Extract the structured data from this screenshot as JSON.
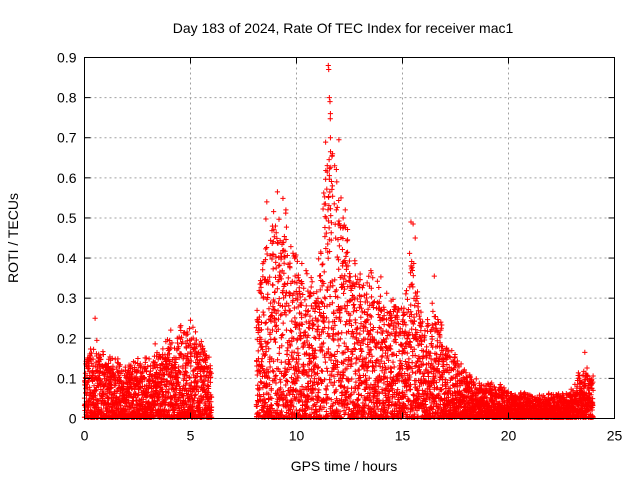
{
  "chart_data": {
    "type": "scatter",
    "title": "Day 183 of 2024, Rate Of TEC Index for receiver mac1",
    "xlabel": "GPS time / hours",
    "ylabel": "ROTI / TECUs",
    "xlim": [
      0,
      25
    ],
    "ylim": [
      0,
      0.9
    ],
    "xticks": [
      0,
      5,
      10,
      15,
      20,
      25
    ],
    "yticks": [
      0,
      0.1,
      0.2,
      0.3,
      0.4,
      0.5,
      0.6,
      0.7,
      0.8,
      0.9
    ],
    "grid": true,
    "marker": "+",
    "color": "#ff0000",
    "data_gap_hours": [
      6.0,
      8.1
    ],
    "envelope": [
      {
        "x": 0.0,
        "y": 0.14
      },
      {
        "x": 0.5,
        "y": 0.18
      },
      {
        "x": 1.0,
        "y": 0.15
      },
      {
        "x": 1.5,
        "y": 0.14
      },
      {
        "x": 2.0,
        "y": 0.13
      },
      {
        "x": 2.5,
        "y": 0.14
      },
      {
        "x": 3.0,
        "y": 0.15
      },
      {
        "x": 3.5,
        "y": 0.17
      },
      {
        "x": 4.0,
        "y": 0.19
      },
      {
        "x": 4.5,
        "y": 0.22
      },
      {
        "x": 5.0,
        "y": 0.24
      },
      {
        "x": 5.5,
        "y": 0.2
      },
      {
        "x": 6.0,
        "y": 0.12
      },
      {
        "x": 8.1,
        "y": 0.25
      },
      {
        "x": 8.5,
        "y": 0.45
      },
      {
        "x": 9.0,
        "y": 0.5
      },
      {
        "x": 9.5,
        "y": 0.48
      },
      {
        "x": 10.0,
        "y": 0.4
      },
      {
        "x": 10.5,
        "y": 0.33
      },
      {
        "x": 11.0,
        "y": 0.35
      },
      {
        "x": 11.5,
        "y": 0.75
      },
      {
        "x": 12.0,
        "y": 0.55
      },
      {
        "x": 12.5,
        "y": 0.4
      },
      {
        "x": 13.0,
        "y": 0.38
      },
      {
        "x": 13.5,
        "y": 0.35
      },
      {
        "x": 14.0,
        "y": 0.33
      },
      {
        "x": 14.5,
        "y": 0.3
      },
      {
        "x": 15.0,
        "y": 0.28
      },
      {
        "x": 15.5,
        "y": 0.4
      },
      {
        "x": 16.0,
        "y": 0.2
      },
      {
        "x": 16.5,
        "y": 0.28
      },
      {
        "x": 17.0,
        "y": 0.18
      },
      {
        "x": 17.5,
        "y": 0.15
      },
      {
        "x": 18.0,
        "y": 0.11
      },
      {
        "x": 18.5,
        "y": 0.09
      },
      {
        "x": 19.0,
        "y": 0.08
      },
      {
        "x": 19.5,
        "y": 0.08
      },
      {
        "x": 20.0,
        "y": 0.07
      },
      {
        "x": 20.5,
        "y": 0.06
      },
      {
        "x": 21.0,
        "y": 0.06
      },
      {
        "x": 21.5,
        "y": 0.05
      },
      {
        "x": 22.0,
        "y": 0.06
      },
      {
        "x": 22.5,
        "y": 0.06
      },
      {
        "x": 23.0,
        "y": 0.07
      },
      {
        "x": 23.5,
        "y": 0.13
      },
      {
        "x": 24.0,
        "y": 0.1
      }
    ],
    "outliers": [
      {
        "x": 0.5,
        "y": 0.25
      },
      {
        "x": 5.0,
        "y": 0.245
      },
      {
        "x": 8.6,
        "y": 0.54
      },
      {
        "x": 9.1,
        "y": 0.565
      },
      {
        "x": 9.5,
        "y": 0.52
      },
      {
        "x": 11.5,
        "y": 0.88
      },
      {
        "x": 11.52,
        "y": 0.87
      },
      {
        "x": 11.55,
        "y": 0.8
      },
      {
        "x": 11.58,
        "y": 0.79
      },
      {
        "x": 11.6,
        "y": 0.76
      },
      {
        "x": 11.6,
        "y": 0.7
      },
      {
        "x": 11.8,
        "y": 0.63
      },
      {
        "x": 12.0,
        "y": 0.695
      },
      {
        "x": 11.7,
        "y": 0.66
      },
      {
        "x": 11.9,
        "y": 0.59
      },
      {
        "x": 12.1,
        "y": 0.55
      },
      {
        "x": 12.2,
        "y": 0.5
      },
      {
        "x": 12.3,
        "y": 0.52
      },
      {
        "x": 11.4,
        "y": 0.5
      },
      {
        "x": 15.4,
        "y": 0.49
      },
      {
        "x": 15.5,
        "y": 0.485
      },
      {
        "x": 15.6,
        "y": 0.45
      },
      {
        "x": 16.5,
        "y": 0.355
      },
      {
        "x": 23.6,
        "y": 0.165
      }
    ]
  }
}
